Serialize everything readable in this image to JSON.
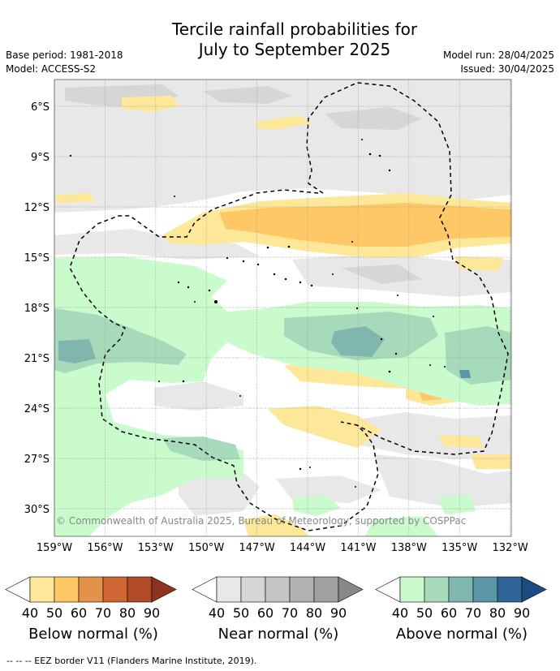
{
  "title": {
    "line1": "Tercile rainfall probabilities for",
    "line2": "July to September 2025"
  },
  "meta": {
    "base_period": "Base period: 1981-2018",
    "model": "Model: ACCESS-S2",
    "model_run": "Model run: 28/04/2025",
    "issued": "Issued: 30/04/2025"
  },
  "map": {
    "lat_ticks": [
      "6°S",
      "9°S",
      "12°S",
      "15°S",
      "18°S",
      "21°S",
      "24°S",
      "27°S",
      "30°S"
    ],
    "lon_ticks": [
      "159°W",
      "156°W",
      "153°W",
      "150°W",
      "147°W",
      "144°W",
      "141°W",
      "138°W",
      "135°W",
      "132°W"
    ],
    "copyright": "© Commonwealth of Australia 2025, Bureau of Meteorology, supported by COSPPac"
  },
  "colorbars": [
    {
      "title": "Below normal (%)",
      "ticks": [
        "40",
        "50",
        "60",
        "70",
        "80",
        "90"
      ],
      "colors": [
        "#ffffff",
        "#fde89a",
        "#fdc865",
        "#e39249",
        "#cf6530",
        "#b04a27",
        "#8e3320"
      ]
    },
    {
      "title": "Near normal (%)",
      "ticks": [
        "40",
        "50",
        "60",
        "70",
        "80",
        "90"
      ],
      "colors": [
        "#ffffff",
        "#e8e8e8",
        "#d6d6d6",
        "#c4c4c4",
        "#b2b2b2",
        "#a0a0a0",
        "#888888"
      ]
    },
    {
      "title": "Above normal (%)",
      "ticks": [
        "40",
        "50",
        "60",
        "70",
        "80",
        "90"
      ],
      "colors": [
        "#ffffff",
        "#c9fbcc",
        "#a7d9bb",
        "#7fb7ae",
        "#5a96a6",
        "#2f6598",
        "#1c4d82"
      ]
    }
  ],
  "footnote": "--  --  -- EEZ border V11 (Flanders Marine Institute, 2019)."
}
